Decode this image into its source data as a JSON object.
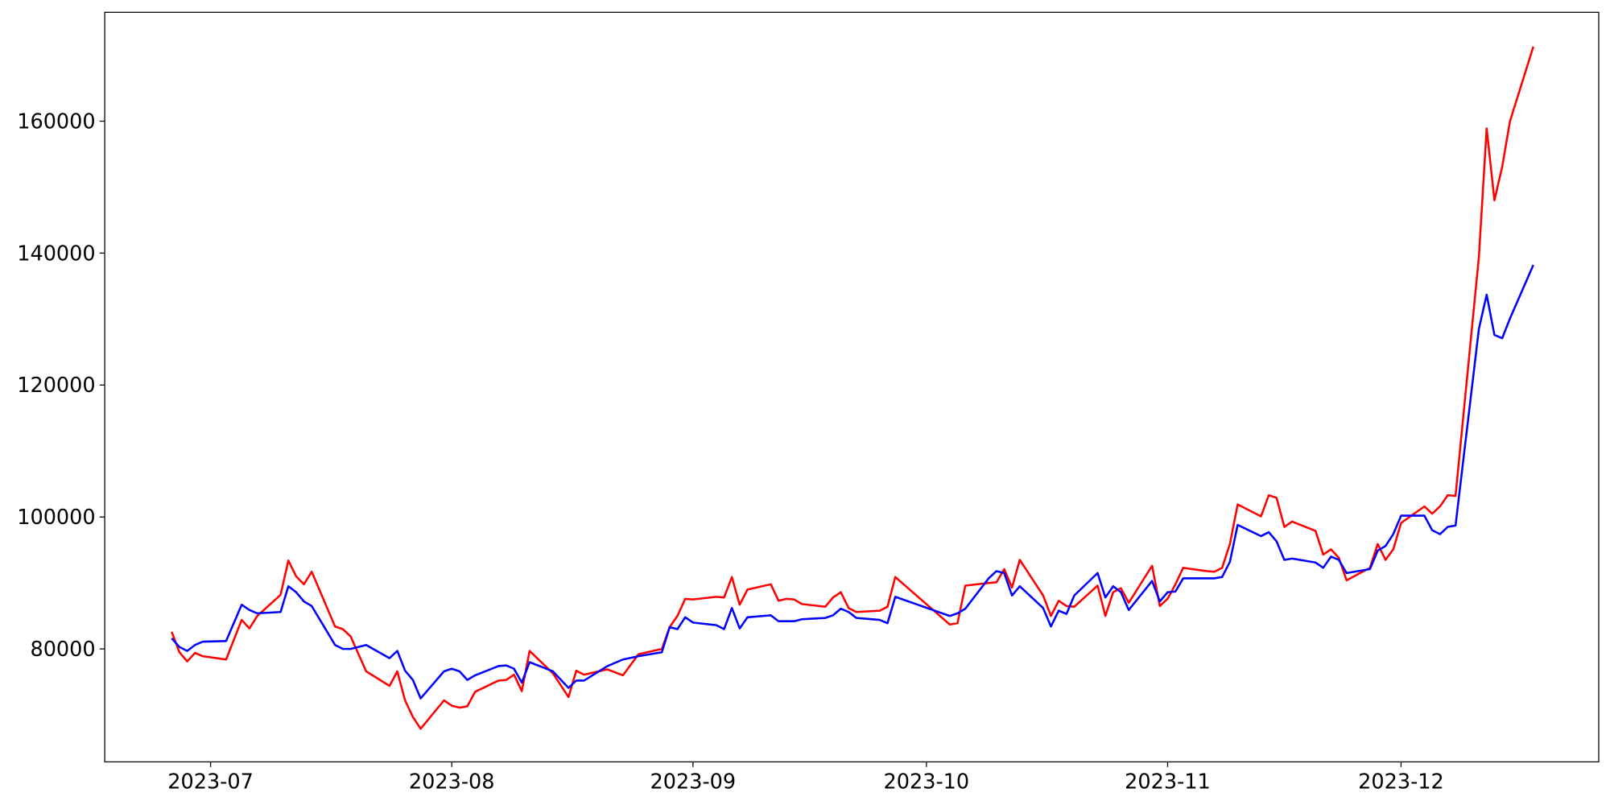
{
  "chart_data": {
    "type": "line",
    "x": [
      176,
      177,
      178,
      179,
      180,
      183,
      185,
      186,
      187,
      190,
      191,
      192,
      193,
      194,
      197,
      198,
      199,
      201,
      204,
      205,
      206,
      207,
      208,
      211,
      212,
      213,
      214,
      215,
      218,
      219,
      220,
      221,
      222,
      225,
      227,
      228,
      229,
      232,
      234,
      236,
      239,
      240,
      241,
      242,
      243,
      246,
      247,
      248,
      249,
      250,
      253,
      254,
      255,
      256,
      257,
      260,
      261,
      262,
      263,
      264,
      267,
      268,
      269,
      276,
      277,
      278,
      281,
      282,
      283,
      284,
      285,
      288,
      289,
      290,
      291,
      292,
      295,
      296,
      297,
      298,
      299,
      302,
      303,
      304,
      305,
      306,
      309,
      310,
      311,
      312,
      313,
      316,
      317,
      318,
      319,
      320,
      323,
      324,
      325,
      326,
      327,
      330,
      331,
      332,
      333,
      334,
      337,
      338,
      339,
      340,
      341,
      344,
      345,
      346,
      347,
      348,
      351
    ],
    "series": [
      {
        "color": "#ff0000",
        "values": [
          82600,
          79500,
          78100,
          79400,
          78900,
          78400,
          84400,
          83100,
          85000,
          88200,
          93400,
          91000,
          89800,
          91700,
          83400,
          83000,
          81900,
          76600,
          74400,
          76600,
          72200,
          69700,
          67900,
          72200,
          71400,
          71100,
          71300,
          73500,
          75200,
          75300,
          76100,
          73600,
          79700,
          76300,
          72700,
          76700,
          76100,
          76900,
          76000,
          79200,
          80000,
          83300,
          85000,
          87600,
          87500,
          87900,
          87800,
          90900,
          86700,
          89000,
          89800,
          87300,
          87600,
          87500,
          86800,
          86400,
          87800,
          88600,
          86200,
          85600,
          85800,
          86400,
          90900,
          83700,
          83900,
          89600,
          90000,
          90100,
          92100,
          89300,
          93500,
          88100,
          85000,
          87300,
          86500,
          86400,
          89600,
          85000,
          88600,
          89200,
          87000,
          92600,
          86500,
          87600,
          89800,
          92300,
          91800,
          91700,
          92300,
          95900,
          101900,
          100100,
          103300,
          102900,
          98500,
          99300,
          97900,
          94300,
          95100,
          93800,
          90400,
          92300,
          95900,
          93500,
          95100,
          99100,
          101600,
          100500,
          101600,
          103300,
          103200,
          139400,
          158900,
          148000,
          153100,
          160000,
          171300
        ]
      },
      {
        "color": "#0000ff",
        "values": [
          81600,
          80300,
          79700,
          80600,
          81100,
          81200,
          86700,
          85900,
          85400,
          85600,
          89500,
          88600,
          87200,
          86500,
          80600,
          80000,
          80000,
          80600,
          78600,
          79700,
          76700,
          75300,
          72500,
          76600,
          77000,
          76600,
          75300,
          76000,
          77400,
          77500,
          77000,
          74900,
          78000,
          76600,
          74100,
          75200,
          75200,
          77400,
          78400,
          78900,
          79500,
          83300,
          83000,
          84800,
          84000,
          83600,
          83000,
          86200,
          83100,
          84800,
          85100,
          84200,
          84200,
          84200,
          84500,
          84700,
          85100,
          86100,
          85600,
          84700,
          84400,
          83900,
          87900,
          85000,
          85400,
          86100,
          90700,
          91800,
          91500,
          88100,
          89500,
          86200,
          83400,
          85800,
          85300,
          88100,
          91500,
          87800,
          89500,
          88600,
          85900,
          90300,
          87200,
          88600,
          88700,
          90700,
          90700,
          90700,
          90900,
          93200,
          98800,
          97100,
          97700,
          96300,
          93500,
          93700,
          93100,
          92300,
          94000,
          93500,
          91500,
          92100,
          94900,
          95600,
          97400,
          100200,
          100200,
          98000,
          97400,
          98500,
          98700,
          128500,
          133700,
          127600,
          127100,
          130100,
          138200
        ]
      }
    ],
    "xlim": [
      167.4,
      359.4
    ],
    "xticks": [
      {
        "value": 181,
        "label": "2023-07"
      },
      {
        "value": 212,
        "label": "2023-08"
      },
      {
        "value": 243,
        "label": "2023-09"
      },
      {
        "value": 273,
        "label": "2023-10"
      },
      {
        "value": 304,
        "label": "2023-11"
      },
      {
        "value": 334,
        "label": "2023-12"
      }
    ],
    "ylim": [
      62880,
      176500
    ],
    "yticks": [
      80000,
      100000,
      120000,
      140000,
      160000
    ],
    "grid": false
  }
}
